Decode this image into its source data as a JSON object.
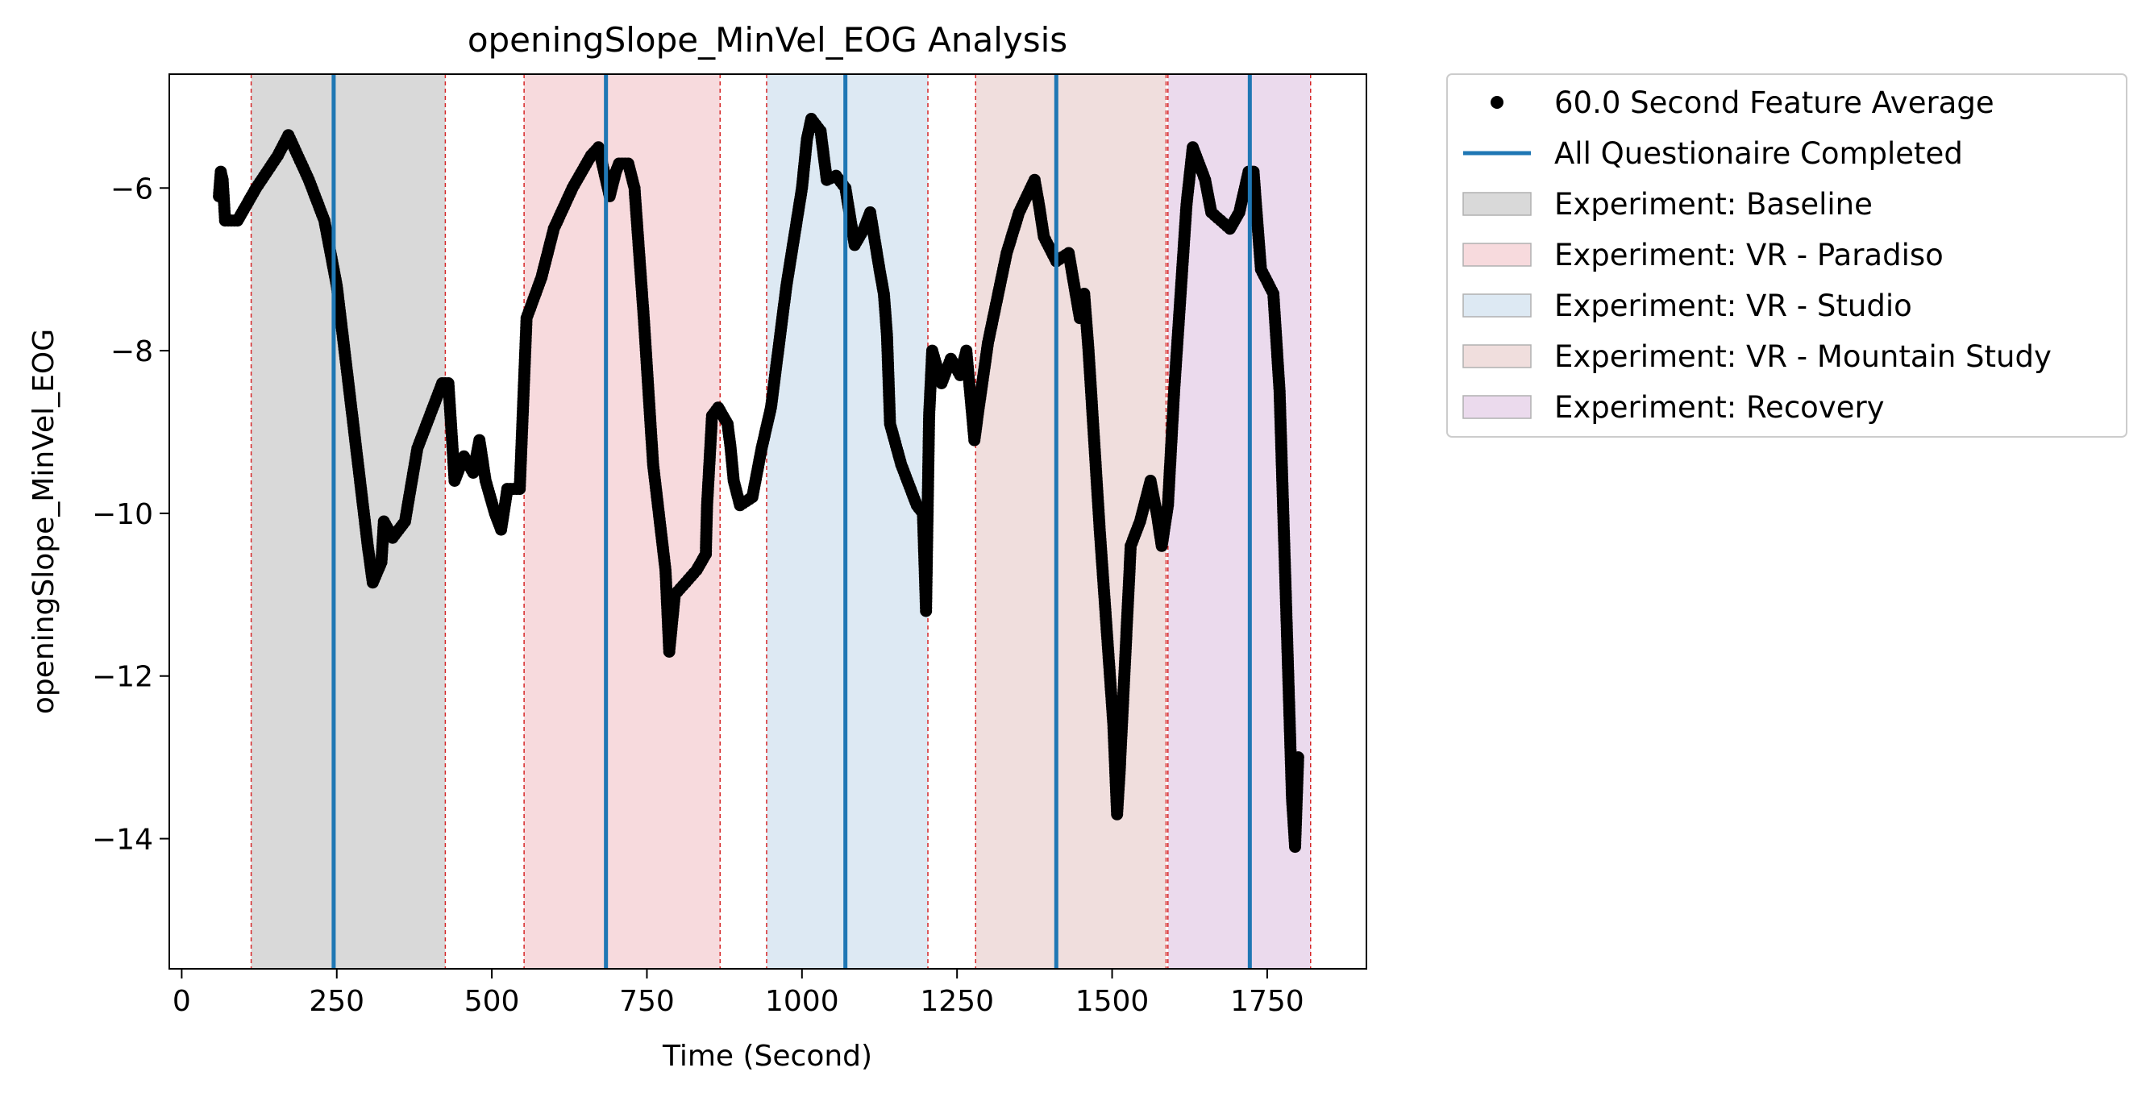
{
  "chart_data": {
    "type": "scatter",
    "title": "openingSlope_MinVel_EOG Analysis",
    "xlabel": "Time (Second)",
    "ylabel": "openingSlope_MinVel_EOG",
    "xlim": [
      -20,
      1910
    ],
    "ylim": [
      -15.6,
      -4.6
    ],
    "x_ticks": [
      0,
      250,
      500,
      750,
      1000,
      1250,
      1500,
      1750
    ],
    "y_ticks": [
      -6,
      -8,
      -10,
      -12,
      -14
    ],
    "x_tick_labels": [
      "0",
      "250",
      "500",
      "750",
      "1000",
      "1250",
      "1500",
      "1750"
    ],
    "y_tick_labels": [
      "−6",
      "−8",
      "−10",
      "−12",
      "−14"
    ],
    "grid": false,
    "legend_position": "outside-right-top",
    "series": [
      {
        "name": "60.0 Second Feature Average",
        "marker": "circle",
        "color": "#000000",
        "anchors": [
          [
            60,
            -6.1
          ],
          [
            63,
            -5.8
          ],
          [
            66,
            -5.9
          ],
          [
            70,
            -6.4
          ],
          [
            90,
            -6.4
          ],
          [
            105,
            -6.2
          ],
          [
            120,
            -6.0
          ],
          [
            155,
            -5.6
          ],
          [
            172,
            -5.35
          ],
          [
            205,
            -5.9
          ],
          [
            230,
            -6.4
          ],
          [
            250,
            -7.2
          ],
          [
            275,
            -8.8
          ],
          [
            300,
            -10.4
          ],
          [
            308,
            -10.85
          ],
          [
            322,
            -10.6
          ],
          [
            326,
            -10.1
          ],
          [
            340,
            -10.3
          ],
          [
            360,
            -10.1
          ],
          [
            380,
            -9.2
          ],
          [
            405,
            -8.7
          ],
          [
            420,
            -8.4
          ],
          [
            430,
            -8.4
          ],
          [
            440,
            -9.6
          ],
          [
            455,
            -9.3
          ],
          [
            470,
            -9.5
          ],
          [
            480,
            -9.1
          ],
          [
            490,
            -9.6
          ],
          [
            505,
            -10.0
          ],
          [
            515,
            -10.2
          ],
          [
            525,
            -9.7
          ],
          [
            545,
            -9.7
          ],
          [
            556,
            -7.6
          ],
          [
            580,
            -7.1
          ],
          [
            600,
            -6.5
          ],
          [
            630,
            -6.0
          ],
          [
            660,
            -5.6
          ],
          [
            672,
            -5.5
          ],
          [
            690,
            -6.1
          ],
          [
            700,
            -5.8
          ],
          [
            705,
            -5.7
          ],
          [
            720,
            -5.7
          ],
          [
            730,
            -6.0
          ],
          [
            745,
            -7.6
          ],
          [
            760,
            -9.4
          ],
          [
            780,
            -10.7
          ],
          [
            786,
            -11.7
          ],
          [
            795,
            -11.0
          ],
          [
            830,
            -10.7
          ],
          [
            845,
            -10.5
          ],
          [
            847,
            -9.9
          ],
          [
            855,
            -8.8
          ],
          [
            865,
            -8.7
          ],
          [
            880,
            -8.9
          ],
          [
            885,
            -9.2
          ],
          [
            890,
            -9.6
          ],
          [
            900,
            -9.9
          ],
          [
            920,
            -9.8
          ],
          [
            935,
            -9.2
          ],
          [
            950,
            -8.7
          ],
          [
            975,
            -7.2
          ],
          [
            1000,
            -6.0
          ],
          [
            1008,
            -5.4
          ],
          [
            1015,
            -5.15
          ],
          [
            1030,
            -5.3
          ],
          [
            1040,
            -5.9
          ],
          [
            1055,
            -5.85
          ],
          [
            1070,
            -6.0
          ],
          [
            1085,
            -6.7
          ],
          [
            1100,
            -6.5
          ],
          [
            1110,
            -6.3
          ],
          [
            1125,
            -7.0
          ],
          [
            1132,
            -7.3
          ],
          [
            1137,
            -7.8
          ],
          [
            1142,
            -8.9
          ],
          [
            1160,
            -9.4
          ],
          [
            1185,
            -9.9
          ],
          [
            1195,
            -10.0
          ],
          [
            1200,
            -11.2
          ],
          [
            1205,
            -8.8
          ],
          [
            1210,
            -8.0
          ],
          [
            1225,
            -8.4
          ],
          [
            1240,
            -8.1
          ],
          [
            1255,
            -8.3
          ],
          [
            1265,
            -8.0
          ],
          [
            1278,
            -9.1
          ],
          [
            1285,
            -8.7
          ],
          [
            1300,
            -7.9
          ],
          [
            1330,
            -6.8
          ],
          [
            1350,
            -6.3
          ],
          [
            1375,
            -5.9
          ],
          [
            1382,
            -6.2
          ],
          [
            1390,
            -6.6
          ],
          [
            1410,
            -6.9
          ],
          [
            1430,
            -6.8
          ],
          [
            1448,
            -7.6
          ],
          [
            1455,
            -7.3
          ],
          [
            1462,
            -8.0
          ],
          [
            1480,
            -10.2
          ],
          [
            1502,
            -12.6
          ],
          [
            1508,
            -13.7
          ],
          [
            1512,
            -13.2
          ],
          [
            1530,
            -10.4
          ],
          [
            1545,
            -10.1
          ],
          [
            1562,
            -9.6
          ],
          [
            1572,
            -10.0
          ],
          [
            1580,
            -10.4
          ],
          [
            1590,
            -9.9
          ],
          [
            1600,
            -8.5
          ],
          [
            1620,
            -6.2
          ],
          [
            1630,
            -5.5
          ],
          [
            1650,
            -5.9
          ],
          [
            1660,
            -6.3
          ],
          [
            1690,
            -6.5
          ],
          [
            1705,
            -6.3
          ],
          [
            1720,
            -5.8
          ],
          [
            1728,
            -5.8
          ],
          [
            1740,
            -7.0
          ],
          [
            1760,
            -7.3
          ],
          [
            1770,
            -8.5
          ],
          [
            1780,
            -11.0
          ],
          [
            1790,
            -13.5
          ],
          [
            1795,
            -14.1
          ],
          [
            1800,
            -13.0
          ]
        ]
      }
    ],
    "questionnaire_lines": {
      "name": "All Questionaire Completed",
      "color": "#1f77b4",
      "x": [
        245,
        684,
        1070,
        1410,
        1722
      ]
    },
    "experiment_spans": [
      {
        "name": "Experiment: Baseline",
        "start": 112,
        "end": 425,
        "color": "#d9d9d9"
      },
      {
        "name": "Experiment: VR - Paradiso",
        "start": 552,
        "end": 868,
        "color": "#f7dadd"
      },
      {
        "name": "Experiment: VR - Studio",
        "start": 943,
        "end": 1203,
        "color": "#dde9f3"
      },
      {
        "name": "Experiment: VR - Mountain Study",
        "start": 1280,
        "end": 1587,
        "color": "#f0dedd"
      },
      {
        "name": "Experiment: Recovery",
        "start": 1590,
        "end": 1820,
        "color": "#ebdaed"
      }
    ],
    "boundary_line_color": "#d62728",
    "legend": [
      {
        "label": "60.0 Second Feature Average",
        "kind": "marker",
        "color": "#000000"
      },
      {
        "label": "All Questionaire Completed",
        "kind": "line",
        "color": "#1f77b4"
      },
      {
        "label": "Experiment: Baseline",
        "kind": "patch",
        "color": "#d9d9d9"
      },
      {
        "label": "Experiment: VR - Paradiso",
        "kind": "patch",
        "color": "#f7dadd"
      },
      {
        "label": "Experiment: VR - Studio",
        "kind": "patch",
        "color": "#dde9f3"
      },
      {
        "label": "Experiment: VR - Mountain Study",
        "kind": "patch",
        "color": "#f0dedd"
      },
      {
        "label": "Experiment: Recovery",
        "kind": "patch",
        "color": "#ebdaed"
      }
    ]
  }
}
